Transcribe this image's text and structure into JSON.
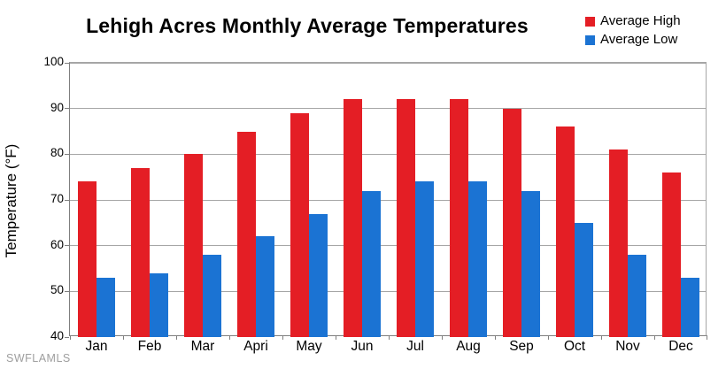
{
  "watermark": "SWFLAMLS",
  "colors": {
    "average_high": "#e41e25",
    "average_low": "#1b73d3",
    "gridline": "#a6a6a6",
    "axis": "#7f7f7f",
    "text": "#000000",
    "watermark": "#9e9e9e"
  },
  "chart_data": {
    "type": "bar",
    "title": "Lehigh Acres Monthly Average Temperatures",
    "xlabel": "",
    "ylabel": "Temperature (°F)",
    "categories": [
      "Jan",
      "Feb",
      "Mar",
      "Apri",
      "May",
      "Jun",
      "Jul",
      "Aug",
      "Sep",
      "Oct",
      "Nov",
      "Dec"
    ],
    "series": [
      {
        "name": "Average High",
        "color": "#e41e25",
        "values": [
          74,
          77,
          80,
          85,
          89,
          92,
          92,
          92,
          90,
          86,
          81,
          76
        ]
      },
      {
        "name": "Average Low",
        "color": "#1b73d3",
        "values": [
          53,
          54,
          58,
          62,
          67,
          72,
          74,
          74,
          72,
          65,
          58,
          53
        ]
      }
    ],
    "ylim": [
      40,
      100
    ],
    "yticks": [
      40,
      50,
      60,
      70,
      80,
      90,
      100
    ],
    "grid": true,
    "legend_position": "top-right"
  }
}
